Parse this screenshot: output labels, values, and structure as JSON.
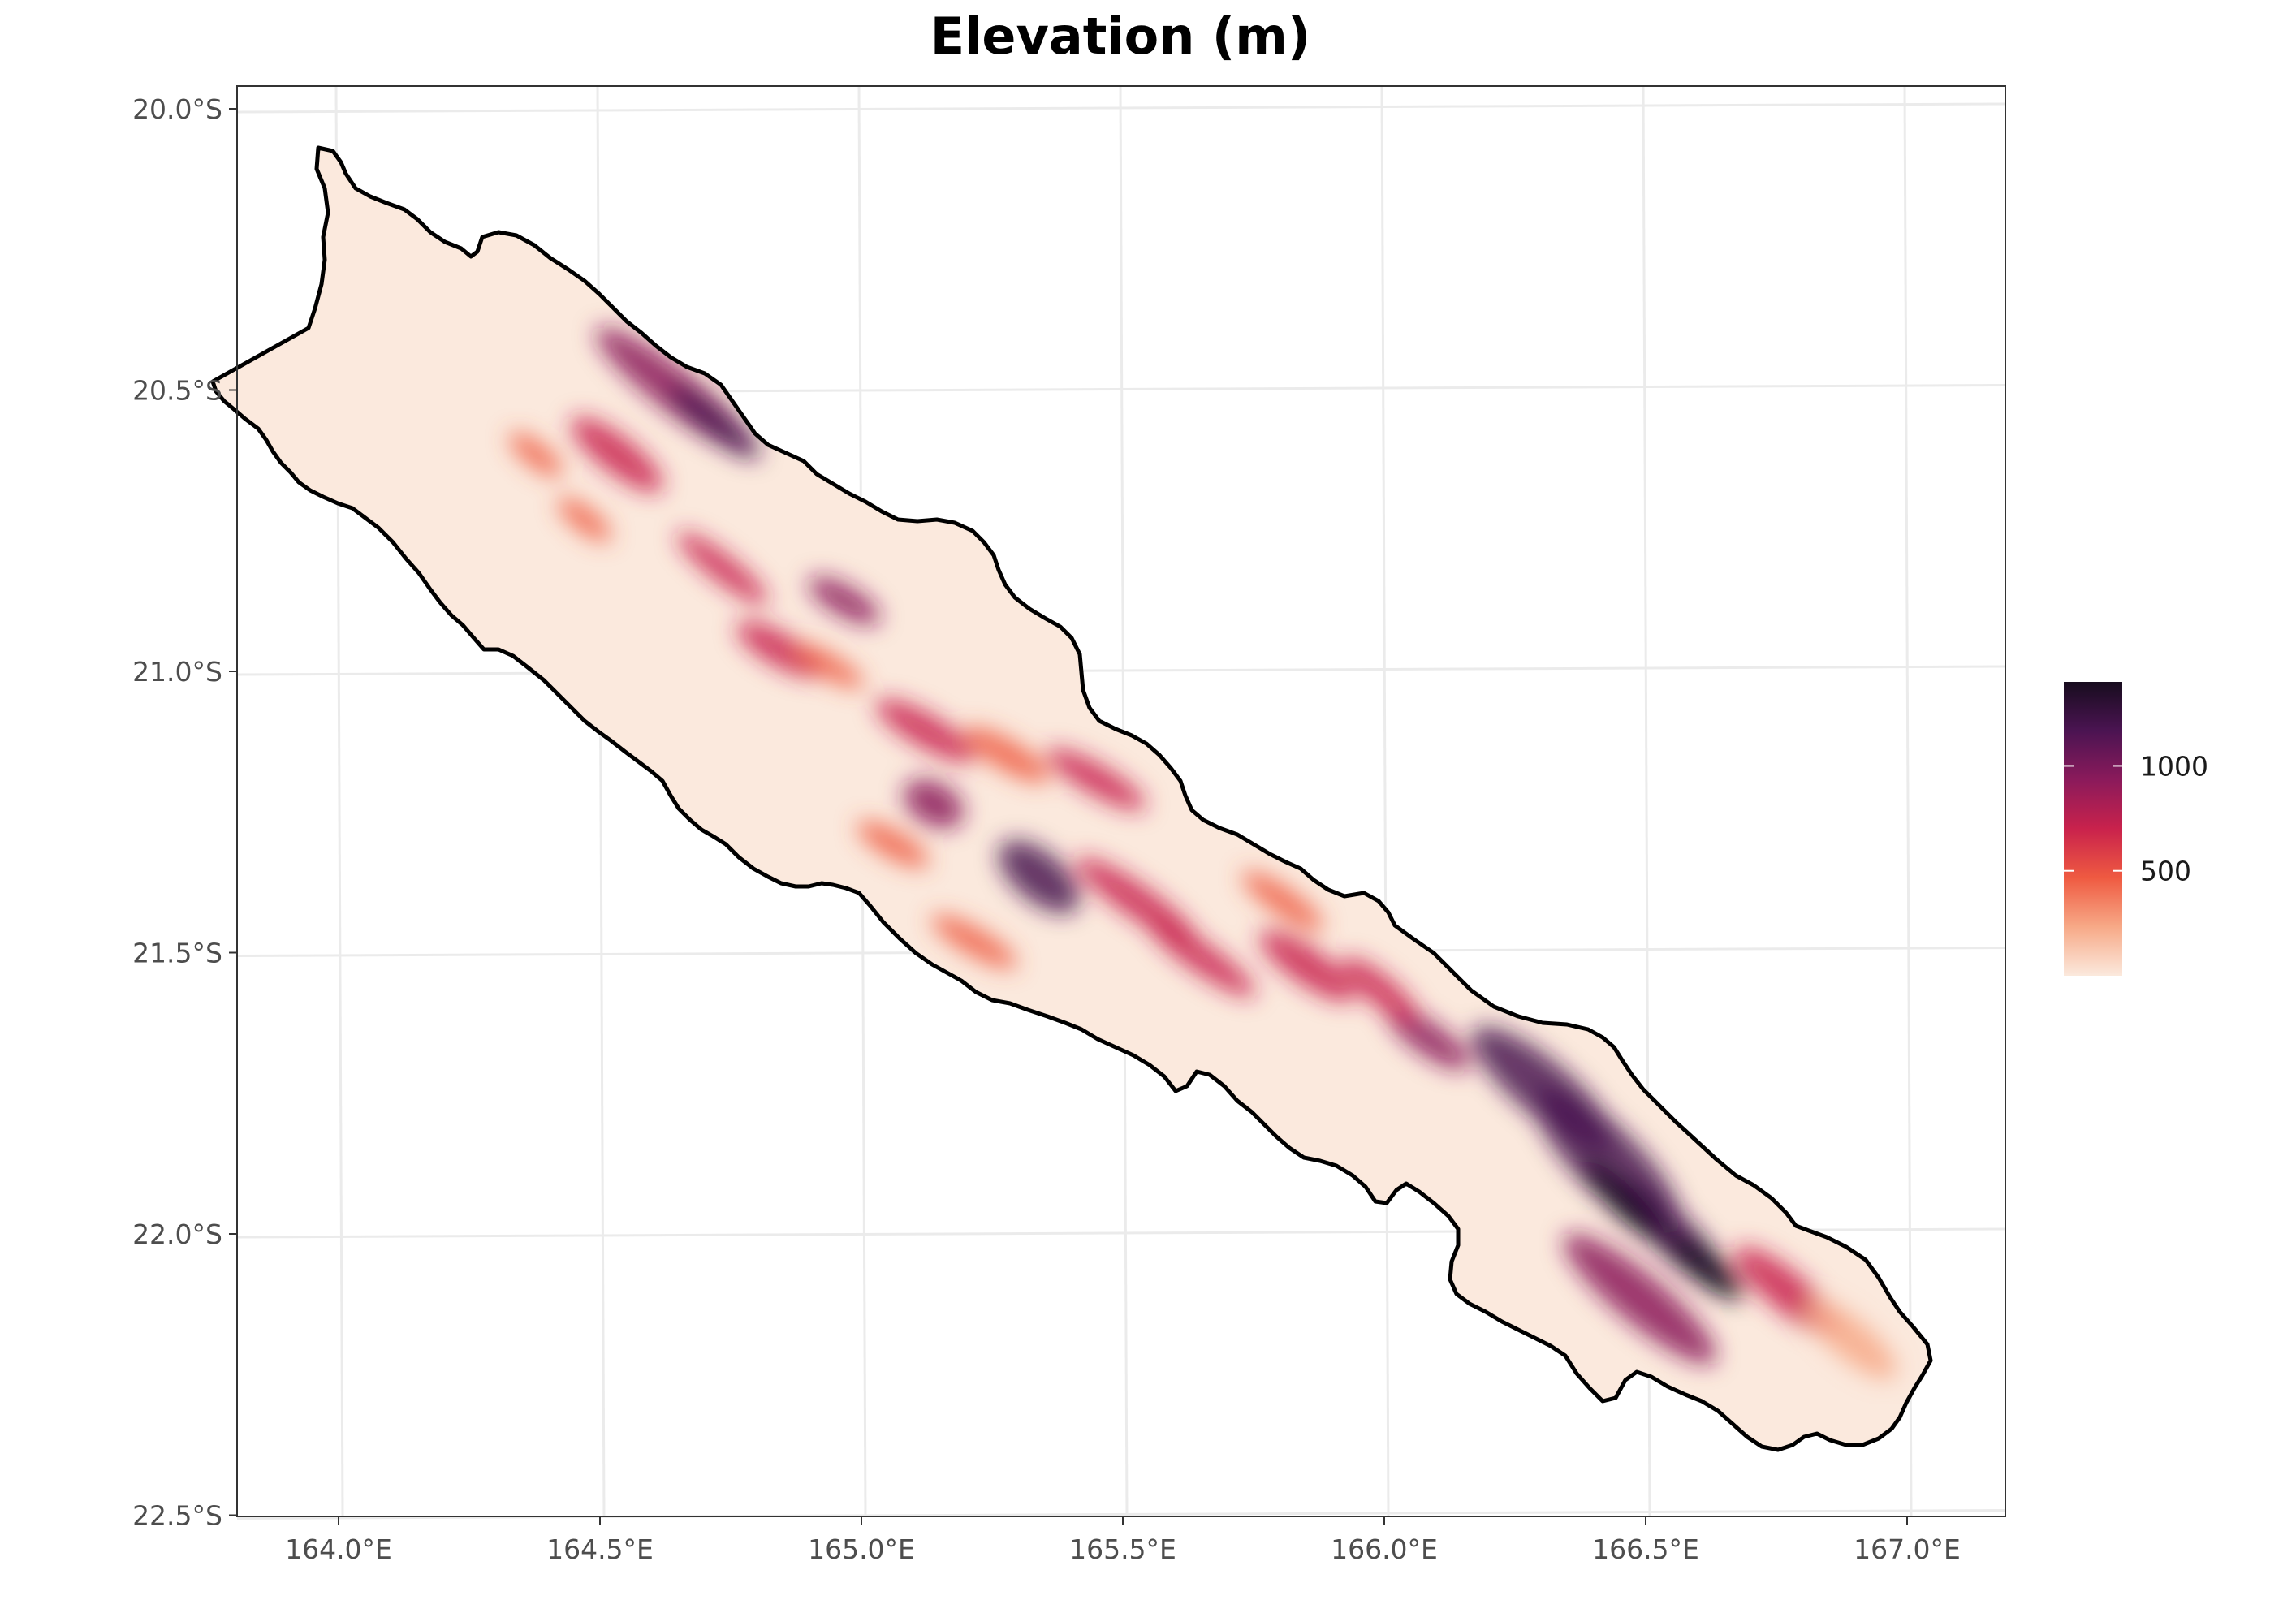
{
  "title": "Elevation (m)",
  "map": {
    "type": "raster-map",
    "region": "New Caledonia (Grande Terre)",
    "x_axis": {
      "ticks": [
        {
          "value": 164.0,
          "label": "164.0°E"
        },
        {
          "value": 164.5,
          "label": "164.5°E"
        },
        {
          "value": 165.0,
          "label": "165.0°E"
        },
        {
          "value": 165.5,
          "label": "165.5°E"
        },
        {
          "value": 166.0,
          "label": "166.0°E"
        },
        {
          "value": 166.5,
          "label": "166.5°E"
        },
        {
          "value": 167.0,
          "label": "167.0°E"
        }
      ],
      "range": [
        163.8,
        167.2
      ]
    },
    "y_axis": {
      "ticks": [
        {
          "value": -20.0,
          "label": "20.0°S"
        },
        {
          "value": -20.5,
          "label": "20.5°S"
        },
        {
          "value": -21.0,
          "label": "21.0°S"
        },
        {
          "value": -21.5,
          "label": "21.5°S"
        },
        {
          "value": -22.0,
          "label": "22.0°S"
        },
        {
          "value": -22.5,
          "label": "22.5°S"
        }
      ],
      "range": [
        -22.5,
        -19.96
      ]
    },
    "grid": true,
    "coastline_color": "#000000",
    "colors": {
      "ramp": [
        "#fbe9dd",
        "#f7a987",
        "#ef5a41",
        "#c9224c",
        "#8b1a5b",
        "#4b1452",
        "#170c1e"
      ],
      "panel_border": "#333333",
      "grid": "#ebebeb"
    }
  },
  "legend": {
    "position": "right",
    "range": [
      0,
      1400
    ],
    "ticks": [
      {
        "value": 500,
        "label": "500"
      },
      {
        "value": 1000,
        "label": "1000"
      }
    ]
  }
}
